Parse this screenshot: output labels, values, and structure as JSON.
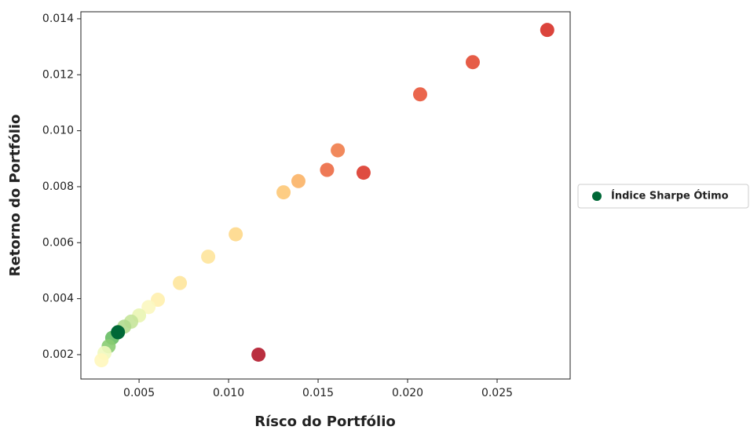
{
  "chart_data": {
    "type": "scatter",
    "xlabel": "Rísco do Portfólio",
    "ylabel": "Retorno do Portfólio",
    "xlim": [
      0.00175,
      0.02908
    ],
    "ylim": [
      0.00113,
      0.01425
    ],
    "xticks": [
      0.005,
      {
        "value": 0.01,
        "label": "0.010"
      },
      0.015,
      {
        "value": 0.02,
        "label": "0.020"
      },
      0.025
    ],
    "yticks": [
      0.002,
      0.004,
      0.006,
      0.008,
      {
        "value": 0.01,
        "label": "0.010"
      },
      0.012,
      0.014
    ],
    "series": [
      {
        "x": [
          0.0278,
          0.02364,
          0.0207,
          0.0161,
          0.0155,
          0.01754,
          0.0139,
          0.01307,
          0.0104,
          0.00886,
          0.00728,
          0.00605,
          0.00553,
          0.005,
          0.00456,
          0.00417,
          0.00382,
          0.0035,
          0.0033,
          0.00307,
          0.0029,
          0.01167
        ],
        "values": [
          0.0136,
          0.01245,
          0.0113,
          0.0093,
          0.0086,
          0.0085,
          0.0082,
          0.0078,
          0.0063,
          0.0055,
          0.00456,
          0.00396,
          0.0037,
          0.0034,
          0.00318,
          0.003,
          0.0028,
          0.0026,
          0.0023,
          0.00206,
          0.0018,
          0.002
        ],
        "colors": [
          "#d73027",
          "#e34a33",
          "#e8553a",
          "#f07c4a",
          "#ec6a44",
          "#dc3a2c",
          "#fbb366",
          "#fdc877",
          "#fed88a",
          "#fee49b",
          "#fee69c",
          "#fff0ae",
          "#fbf7c0",
          "#e9f5b3",
          "#c5e49a",
          "#b3dc8f",
          "#91cf7e",
          "#66bd63",
          "#8acc72",
          "#eff8be",
          "#fff7bd",
          "#b2182b"
        ]
      },
      {
        "name": "Índice Sharpe Ótimo",
        "color": "#006837",
        "x": [
          0.00382
        ],
        "values": [
          0.0028
        ]
      }
    ]
  }
}
